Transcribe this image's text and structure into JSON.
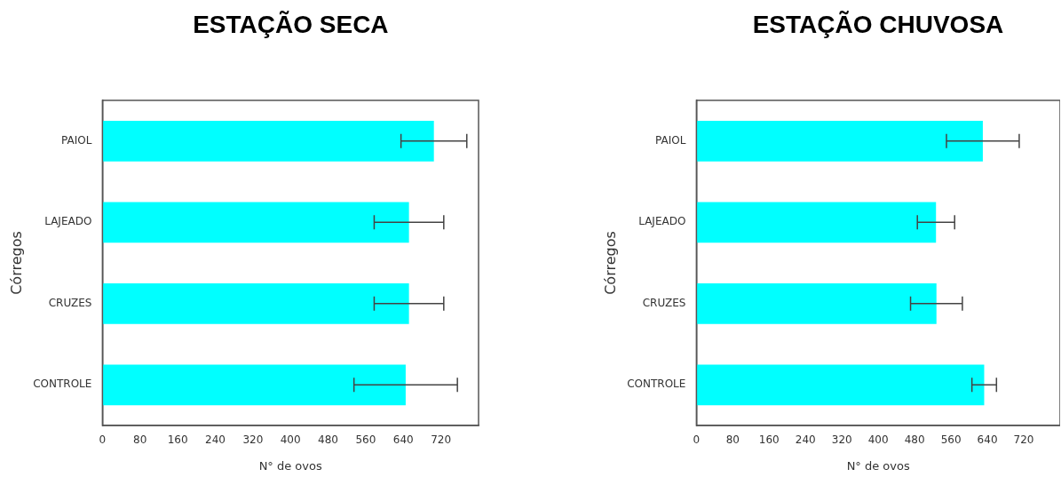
{
  "chart_data": [
    {
      "type": "bar",
      "orientation": "horizontal",
      "title": "ESTAÇÃO SECA",
      "xlabel": "N° de ovos",
      "ylabel": "Córregos",
      "categories": [
        "PAIOL",
        "LAJEADO",
        "CRUZES",
        "CONTROLE"
      ],
      "values": [
        705,
        652,
        652,
        645
      ],
      "errors": [
        70,
        74,
        74,
        110
      ],
      "color": "#00ffff",
      "xlim": [
        0,
        800
      ],
      "xticks": [
        0,
        80,
        160,
        240,
        320,
        400,
        480,
        560,
        640,
        720
      ],
      "grid": false
    },
    {
      "type": "bar",
      "orientation": "horizontal",
      "title": "ESTAÇÃO CHUVOSA",
      "xlabel": "N° de ovos",
      "ylabel": "Córregos",
      "categories": [
        "PAIOL",
        "LAJEADO",
        "CRUZES",
        "CONTROLE"
      ],
      "values": [
        630,
        527,
        528,
        633
      ],
      "errors": [
        80,
        41,
        57,
        27
      ],
      "color": "#00ffff",
      "xlim": [
        0,
        800
      ],
      "xticks": [
        0,
        80,
        160,
        240,
        320,
        400,
        480,
        560,
        640,
        720
      ],
      "grid": false
    }
  ]
}
